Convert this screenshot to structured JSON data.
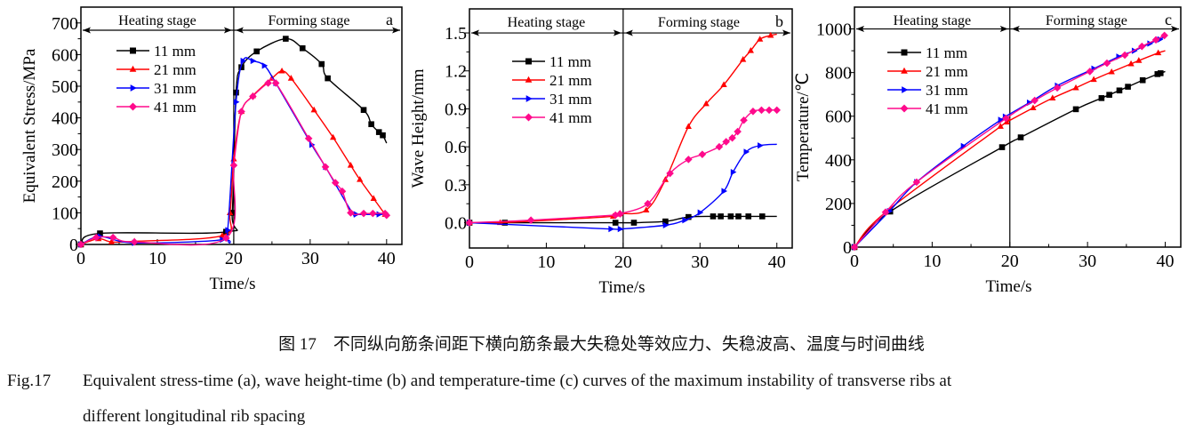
{
  "colors": {
    "11 mm": "#000000",
    "21 mm": "#ff0000",
    "31 mm": "#0000ff",
    "41 mm": "#ff0a8c"
  },
  "chart_data": [
    {
      "type": "line",
      "panel": "a",
      "xlabel": "Time/s",
      "ylabel": "Equivalent Stress/MPa",
      "xlim": [
        0,
        42
      ],
      "ylim": [
        0,
        750
      ],
      "xticks": [
        0,
        10,
        20,
        30,
        40
      ],
      "yticks": [
        0,
        100,
        200,
        300,
        400,
        500,
        600,
        700
      ],
      "stages": {
        "heating": "Heating stage",
        "forming": "Forming stage",
        "boundary": 20,
        "arrow_level": 677
      },
      "legend": "top-left",
      "series": [
        {
          "name": "11 mm",
          "marker": "square",
          "points": [
            [
              0,
              0
            ],
            [
              2.5,
              35
            ],
            [
              19,
              40
            ],
            [
              19.8,
              100
            ],
            [
              20.3,
              480
            ],
            [
              21,
              560
            ],
            [
              23,
              610
            ],
            [
              26.8,
              650
            ],
            [
              29,
              620
            ],
            [
              31.5,
              570
            ],
            [
              32.3,
              525
            ],
            [
              37,
              425
            ],
            [
              38,
              380
            ],
            [
              39,
              355
            ],
            [
              39.5,
              345
            ],
            [
              40,
              320
            ]
          ]
        },
        {
          "name": "21 mm",
          "marker": "triangle-up",
          "points": [
            [
              0,
              0
            ],
            [
              2.3,
              18
            ],
            [
              4,
              8
            ],
            [
              7,
              10
            ],
            [
              18.5,
              28
            ],
            [
              19.5,
              100
            ],
            [
              20,
              270
            ],
            [
              21,
              420
            ],
            [
              22.5,
              470
            ],
            [
              25,
              525
            ],
            [
              26.3,
              548
            ],
            [
              27.5,
              525
            ],
            [
              30.5,
              425
            ],
            [
              33,
              338
            ],
            [
              35.3,
              250
            ],
            [
              36.5,
              205
            ],
            [
              38.3,
              145
            ],
            [
              39.8,
              95
            ],
            [
              40,
              90
            ]
          ]
        },
        {
          "name": "31 mm",
          "marker": "triangle-right",
          "points": [
            [
              0,
              0
            ],
            [
              2.5,
              25
            ],
            [
              7,
              5
            ],
            [
              18.5,
              15
            ],
            [
              19.2,
              45
            ],
            [
              20.3,
              450
            ],
            [
              21.2,
              580
            ],
            [
              22.5,
              580
            ],
            [
              24,
              565
            ],
            [
              25.5,
              510
            ],
            [
              30.2,
              315
            ],
            [
              32,
              245
            ],
            [
              35.5,
              100
            ],
            [
              36,
              95
            ],
            [
              39,
              95
            ],
            [
              40.3,
              95
            ]
          ]
        },
        {
          "name": "41 mm",
          "marker": "diamond",
          "points": [
            [
              0,
              0
            ],
            [
              2,
              22
            ],
            [
              4.2,
              22
            ],
            [
              7,
              8
            ],
            [
              19,
              20
            ],
            [
              20,
              250
            ],
            [
              21,
              420
            ],
            [
              22.5,
              468
            ],
            [
              24.5,
              510
            ],
            [
              25.5,
              510
            ],
            [
              29.8,
              335
            ],
            [
              32,
              245
            ],
            [
              33.3,
              195
            ],
            [
              34.2,
              168
            ],
            [
              35.3,
              100
            ],
            [
              37,
              98
            ],
            [
              38.2,
              98
            ],
            [
              39.8,
              98
            ],
            [
              40,
              92
            ]
          ]
        }
      ]
    },
    {
      "type": "line",
      "panel": "b",
      "xlabel": "Time/s",
      "ylabel": "Wave Height/mm",
      "xlim": [
        0,
        42
      ],
      "ylim": [
        -0.2,
        1.69
      ],
      "xticks": [
        0,
        10,
        20,
        30,
        40
      ],
      "yticks": [
        "0.0",
        "0.3",
        "0.6",
        "0.9",
        "1.2",
        "1.5"
      ],
      "stages": {
        "heating": "Heating stage",
        "forming": "Forming stage",
        "boundary": 20,
        "arrow_level": 1.5
      },
      "legend": "top-left",
      "series": [
        {
          "name": "11 mm",
          "marker": "square",
          "points": [
            [
              0,
              0
            ],
            [
              4.6,
              0
            ],
            [
              19,
              0
            ],
            [
              21.4,
              0
            ],
            [
              25.5,
              0.01
            ],
            [
              28.5,
              0.045
            ],
            [
              31.7,
              0.05
            ],
            [
              32.7,
              0.05
            ],
            [
              34,
              0.05
            ],
            [
              35,
              0.05
            ],
            [
              36.3,
              0.05
            ],
            [
              38.1,
              0.05
            ],
            [
              40,
              0.05
            ]
          ]
        },
        {
          "name": "21 mm",
          "marker": "triangle-up",
          "points": [
            [
              0,
              0
            ],
            [
              4,
              0
            ],
            [
              18.7,
              0.05
            ],
            [
              19.5,
              0.07
            ],
            [
              23,
              0.1
            ],
            [
              25.5,
              0.34
            ],
            [
              28.5,
              0.76
            ],
            [
              30.8,
              0.94
            ],
            [
              33.1,
              1.09
            ],
            [
              35.6,
              1.29
            ],
            [
              36.6,
              1.36
            ],
            [
              37.8,
              1.45
            ],
            [
              39.2,
              1.48
            ],
            [
              40,
              1.49
            ]
          ]
        },
        {
          "name": "31 mm",
          "marker": "triangle-right",
          "points": [
            [
              0,
              0
            ],
            [
              18.4,
              -0.05
            ],
            [
              19.6,
              -0.05
            ],
            [
              25.5,
              -0.02
            ],
            [
              28,
              0.02
            ],
            [
              30,
              0.08
            ],
            [
              33.1,
              0.25
            ],
            [
              34.3,
              0.4
            ],
            [
              36,
              0.56
            ],
            [
              37.8,
              0.61
            ],
            [
              40,
              0.62
            ]
          ]
        },
        {
          "name": "41 mm",
          "marker": "diamond",
          "points": [
            [
              0,
              0
            ],
            [
              8,
              0.02
            ],
            [
              19,
              0.06
            ],
            [
              19.6,
              0.07
            ],
            [
              23.2,
              0.15
            ],
            [
              26.1,
              0.39
            ],
            [
              28.5,
              0.5
            ],
            [
              30.3,
              0.54
            ],
            [
              32.5,
              0.6
            ],
            [
              33.4,
              0.64
            ],
            [
              34.2,
              0.67
            ],
            [
              34.9,
              0.72
            ],
            [
              35.7,
              0.81
            ],
            [
              36.9,
              0.88
            ],
            [
              38,
              0.89
            ],
            [
              39,
              0.89
            ],
            [
              40,
              0.89
            ]
          ]
        }
      ]
    },
    {
      "type": "line",
      "panel": "c",
      "xlabel": "Time/s",
      "ylabel": "Temperature/℃",
      "xlim": [
        0,
        42
      ],
      "ylim": [
        0,
        1100
      ],
      "xticks": [
        0,
        10,
        20,
        30,
        40
      ],
      "yticks": [
        0,
        200,
        400,
        600,
        800,
        1000
      ],
      "stages": {
        "heating": "Heating stage",
        "forming": "Forming stage",
        "boundary": 20,
        "arrow_level": 1000
      },
      "legend": "top-left",
      "series": [
        {
          "name": "11 mm",
          "marker": "square",
          "points": [
            [
              0,
              0
            ],
            [
              4.6,
              163
            ],
            [
              19,
              458
            ],
            [
              21.4,
              503
            ],
            [
              28.5,
              632
            ],
            [
              31.8,
              683
            ],
            [
              32.8,
              698
            ],
            [
              34.1,
              718
            ],
            [
              35.2,
              735
            ],
            [
              37.1,
              765
            ],
            [
              39,
              793
            ],
            [
              39.4,
              797
            ],
            [
              40,
              805
            ]
          ]
        },
        {
          "name": "21 mm",
          "marker": "triangle-up",
          "points": [
            [
              0,
              0
            ],
            [
              4,
              160
            ],
            [
              18.8,
              553
            ],
            [
              19.6,
              573
            ],
            [
              23,
              638
            ],
            [
              25.5,
              683
            ],
            [
              28.5,
              730
            ],
            [
              30.8,
              768
            ],
            [
              33.1,
              803
            ],
            [
              35.6,
              840
            ],
            [
              36.6,
              855
            ],
            [
              39.1,
              890
            ],
            [
              40,
              900
            ]
          ]
        },
        {
          "name": "31 mm",
          "marker": "triangle-right",
          "points": [
            [
              0,
              0
            ],
            [
              4.5,
              165
            ],
            [
              8,
              298
            ],
            [
              14,
              463
            ],
            [
              18.8,
              583
            ],
            [
              19.4,
              598
            ],
            [
              22.5,
              662
            ],
            [
              26.1,
              740
            ],
            [
              30.8,
              818
            ],
            [
              34,
              873
            ],
            [
              36,
              900
            ],
            [
              38,
              933
            ],
            [
              39.3,
              952
            ],
            [
              40,
              965
            ]
          ]
        },
        {
          "name": "41 mm",
          "marker": "diamond",
          "points": [
            [
              0,
              0
            ],
            [
              4,
              160
            ],
            [
              8,
              298
            ],
            [
              19.5,
              590
            ],
            [
              23.2,
              672
            ],
            [
              26.1,
              730
            ],
            [
              30.3,
              805
            ],
            [
              32.5,
              843
            ],
            [
              34.8,
              880
            ],
            [
              37,
              920
            ],
            [
              38.8,
              950
            ],
            [
              39.9,
              970
            ]
          ]
        }
      ]
    }
  ],
  "caption": {
    "cn": "图 17　不同纵向筋条间距下横向筋条最大失稳处等效应力、失稳波高、温度与时间曲线",
    "en_label": "Fig.17",
    "en_line1": "Equivalent stress-time (a), wave height-time (b) and temperature-time (c) curves of the maximum instability of transverse ribs at",
    "en_line2": "different longitudinal rib spacing"
  }
}
